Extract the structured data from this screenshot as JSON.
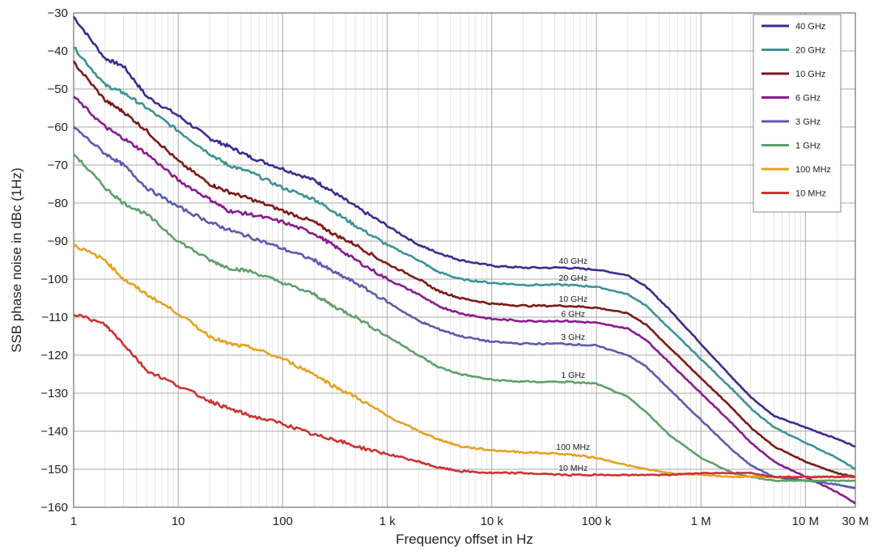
{
  "chart_data": {
    "type": "line",
    "title": "",
    "xlabel": "Frequency offset in Hz",
    "ylabel": "SSB phase noise in dBc (1Hz)",
    "x_scale": "log",
    "xlim": [
      1,
      30000000
    ],
    "ylim": [
      -160,
      -30
    ],
    "grid": true,
    "legend_position": "top-right",
    "x_ticks": [
      {
        "value": 1,
        "label": "1"
      },
      {
        "value": 10,
        "label": "10"
      },
      {
        "value": 100,
        "label": "100"
      },
      {
        "value": 1000,
        "label": "1 k"
      },
      {
        "value": 10000,
        "label": "10 k"
      },
      {
        "value": 100000,
        "label": "100 k"
      },
      {
        "value": 1000000,
        "label": "1 M"
      },
      {
        "value": 10000000,
        "label": "10 M"
      },
      {
        "value": 30000000,
        "label": "30 M"
      }
    ],
    "y_ticks": [
      -30,
      -40,
      -50,
      -60,
      -70,
      -80,
      -90,
      -100,
      -110,
      -120,
      -130,
      -140,
      -150,
      -160
    ],
    "series": [
      {
        "name": "40 GHz",
        "color": "#3f2a8f",
        "x": [
          1,
          2,
          3,
          5,
          10,
          20,
          30,
          50,
          100,
          200,
          300,
          500,
          1000,
          2000,
          3000,
          5000,
          10000,
          20000,
          50000,
          100000,
          200000,
          300000,
          500000,
          1000000,
          2000000,
          3000000,
          5000000,
          10000000,
          20000000,
          30000000
        ],
        "y": [
          -31,
          -42,
          -44,
          -52,
          -57,
          -63,
          -65,
          -68,
          -71,
          -74,
          -77,
          -81,
          -86,
          -91,
          -93,
          -95,
          -96.5,
          -97,
          -97,
          -97.5,
          -99,
          -102,
          -108,
          -117,
          -126,
          -131,
          -136,
          -139,
          -142,
          -144
        ]
      },
      {
        "name": "20 GHz",
        "color": "#3d9393",
        "x": [
          1,
          2,
          3,
          5,
          10,
          20,
          30,
          50,
          100,
          200,
          300,
          500,
          1000,
          2000,
          3000,
          5000,
          10000,
          20000,
          50000,
          100000,
          200000,
          300000,
          500000,
          1000000,
          2000000,
          3000000,
          5000000,
          10000000,
          20000000,
          30000000
        ],
        "y": [
          -39,
          -49,
          -51,
          -55,
          -61,
          -67,
          -70,
          -72,
          -76,
          -79,
          -82,
          -86,
          -91,
          -95,
          -98,
          -100,
          -101,
          -101.5,
          -101.5,
          -102,
          -104,
          -107,
          -113,
          -121,
          -129,
          -134,
          -139,
          -143,
          -147,
          -150
        ]
      },
      {
        "name": "10 GHz",
        "color": "#7b1a16",
        "x": [
          1,
          2,
          3,
          5,
          10,
          20,
          30,
          50,
          100,
          200,
          300,
          500,
          1000,
          2000,
          3000,
          5000,
          10000,
          20000,
          50000,
          100000,
          200000,
          300000,
          500000,
          1000000,
          2000000,
          3000000,
          5000000,
          10000000,
          20000000,
          30000000
        ],
        "y": [
          -43,
          -53,
          -56,
          -61,
          -69,
          -75,
          -77,
          -79,
          -82,
          -85,
          -88,
          -91,
          -96,
          -100,
          -103,
          -105,
          -106.5,
          -107,
          -107,
          -107.5,
          -109,
          -112,
          -118,
          -126,
          -134,
          -139,
          -144,
          -148,
          -151,
          -152
        ]
      },
      {
        "name": "6 GHz",
        "color": "#8a1a8f",
        "x": [
          1,
          2,
          3,
          5,
          10,
          20,
          30,
          50,
          100,
          200,
          300,
          500,
          1000,
          2000,
          3000,
          5000,
          10000,
          20000,
          50000,
          100000,
          200000,
          300000,
          500000,
          1000000,
          2000000,
          3000000,
          5000000,
          10000000,
          20000000,
          30000000
        ],
        "y": [
          -52,
          -60,
          -63,
          -67,
          -74,
          -79,
          -82,
          -83,
          -85,
          -88,
          -91,
          -95,
          -100,
          -104,
          -107,
          -109,
          -110.5,
          -111,
          -111,
          -111.5,
          -113,
          -116,
          -122,
          -130,
          -138,
          -143,
          -148,
          -152,
          -156,
          -159
        ]
      },
      {
        "name": "3 GHz",
        "color": "#5b5bb0",
        "x": [
          1,
          2,
          3,
          5,
          10,
          20,
          30,
          50,
          100,
          200,
          300,
          500,
          1000,
          2000,
          3000,
          5000,
          10000,
          20000,
          50000,
          100000,
          200000,
          300000,
          500000,
          1000000,
          2000000,
          3000000,
          5000000,
          10000000,
          20000000,
          30000000
        ],
        "y": [
          -60,
          -67,
          -70,
          -76,
          -81,
          -85,
          -87,
          -89,
          -92,
          -95,
          -98,
          -101,
          -106,
          -111,
          -113,
          -115,
          -116.5,
          -117,
          -117,
          -117.5,
          -120,
          -123,
          -129,
          -137,
          -145,
          -149,
          -152,
          -153,
          -154,
          -155
        ]
      },
      {
        "name": "1 GHz",
        "color": "#5fa06a",
        "x": [
          1,
          2,
          3,
          5,
          10,
          20,
          30,
          50,
          100,
          200,
          300,
          500,
          1000,
          2000,
          3000,
          5000,
          10000,
          20000,
          50000,
          100000,
          200000,
          300000,
          500000,
          1000000,
          2000000,
          3000000,
          5000000,
          10000000,
          20000000,
          30000000
        ],
        "y": [
          -67,
          -76,
          -80,
          -83,
          -90,
          -95,
          -97,
          -98,
          -101,
          -104,
          -107,
          -110,
          -115,
          -120,
          -123,
          -125,
          -126.5,
          -127,
          -127,
          -127.5,
          -131,
          -135,
          -141,
          -147,
          -151,
          -152,
          -153,
          -153,
          -153,
          -153
        ]
      },
      {
        "name": "100 MHz",
        "color": "#e6a125",
        "x": [
          1,
          2,
          3,
          5,
          10,
          20,
          30,
          50,
          100,
          200,
          300,
          500,
          1000,
          2000,
          3000,
          5000,
          10000,
          20000,
          50000,
          100000,
          200000,
          300000,
          500000,
          1000000,
          2000000,
          3000000,
          5000000,
          10000000,
          20000000,
          30000000
        ],
        "y": [
          -91,
          -95,
          -100,
          -104,
          -109,
          -115,
          -117,
          -118,
          -121,
          -125,
          -128,
          -131,
          -136,
          -140,
          -142,
          -144,
          -145,
          -145.5,
          -146,
          -147,
          -149,
          -150,
          -151,
          -151.5,
          -152,
          -152,
          -152,
          -152,
          -152,
          -152
        ]
      },
      {
        "name": "10 MHz",
        "color": "#cc3333",
        "x": [
          1,
          2,
          3,
          5,
          10,
          20,
          30,
          50,
          100,
          200,
          300,
          500,
          1000,
          2000,
          3000,
          5000,
          10000,
          20000,
          50000,
          100000,
          200000,
          300000,
          500000,
          1000000,
          2000000,
          3000000,
          5000000,
          10000000,
          20000000,
          30000000
        ],
        "y": [
          -109,
          -112,
          -117,
          -124,
          -128,
          -132,
          -134,
          -136,
          -138,
          -141,
          -142,
          -144,
          -146,
          -148,
          -149.5,
          -150.5,
          -151,
          -151,
          -151.5,
          -151.5,
          -151.5,
          -151.5,
          -151.5,
          -151,
          -151,
          -151,
          -152,
          -152,
          -152,
          -152
        ]
      }
    ],
    "annotations": [
      {
        "text": "40 GHz",
        "x": 60000,
        "y": -97
      },
      {
        "text": "20 GHz",
        "x": 60000,
        "y": -101.5
      },
      {
        "text": "10 GHz",
        "x": 60000,
        "y": -107
      },
      {
        "text": "6 GHz",
        "x": 60000,
        "y": -111
      },
      {
        "text": "3 GHz",
        "x": 60000,
        "y": -117
      },
      {
        "text": "1 GHz",
        "x": 60000,
        "y": -127
      },
      {
        "text": "100 MHz",
        "x": 60000,
        "y": -146
      },
      {
        "text": "10 MHz",
        "x": 60000,
        "y": -151.5
      }
    ]
  }
}
